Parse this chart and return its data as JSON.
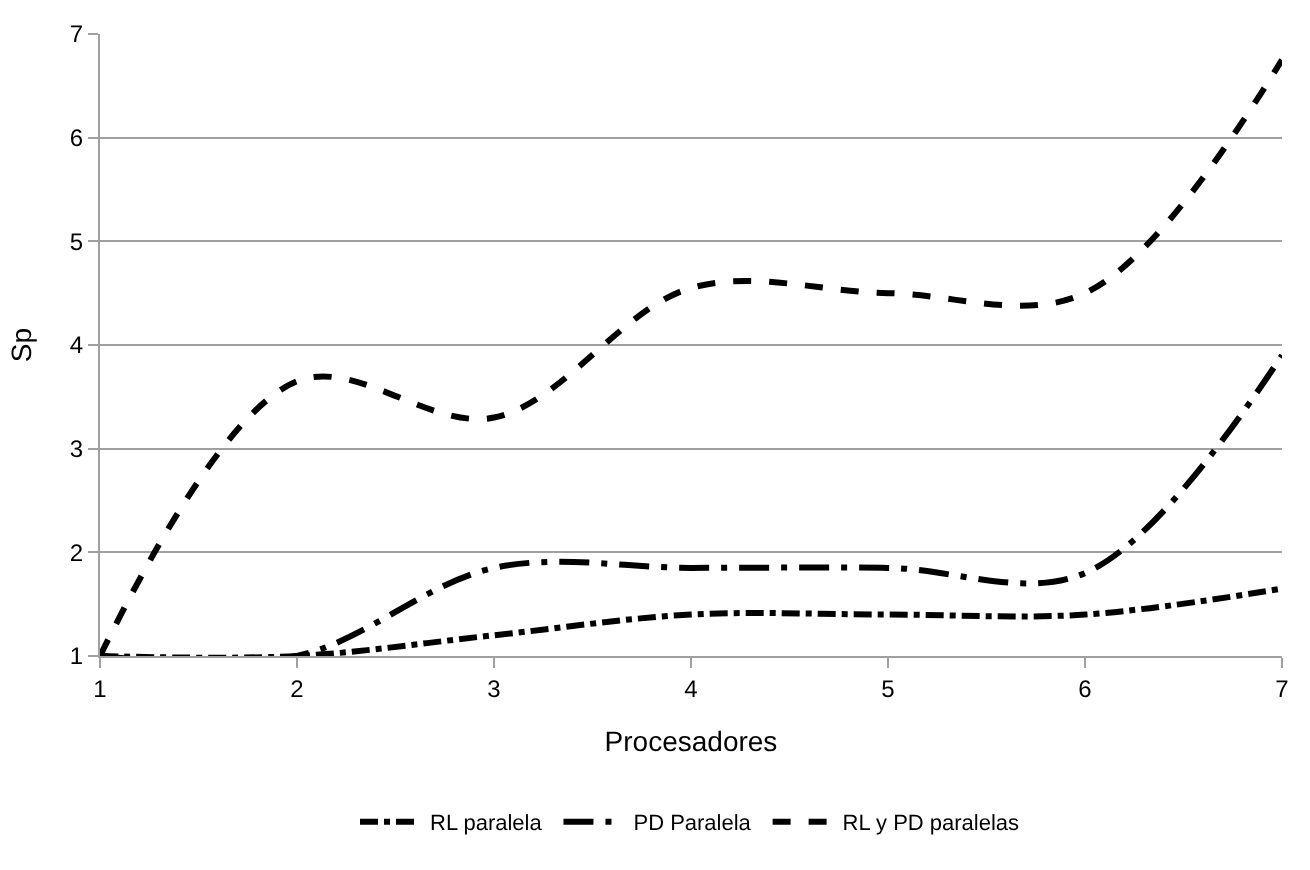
{
  "chart_data": {
    "type": "line",
    "xlabel": "Procesadores",
    "ylabel": "Sp",
    "x": [
      1,
      2,
      3,
      4,
      5,
      6,
      7
    ],
    "series": [
      {
        "name": "RL paralela",
        "color": "#000000",
        "line_style": "dashdot",
        "values": [
          1,
          1,
          1.2,
          1.4,
          1.4,
          1.4,
          1.65
        ]
      },
      {
        "name": "PD Paralela",
        "color": "#000000",
        "line_style": "longdashdot",
        "values": [
          1,
          1,
          1.85,
          1.85,
          1.85,
          1.8,
          3.9
        ]
      },
      {
        "name": "RL y PD paralelas",
        "color": "#000000",
        "line_style": "dashed",
        "values": [
          1,
          3.65,
          3.3,
          4.55,
          4.5,
          4.5,
          6.75
        ]
      }
    ],
    "xlim": [
      1,
      7
    ],
    "xticks": [
      1,
      2,
      3,
      4,
      5,
      6,
      7
    ],
    "ylim": [
      1,
      7
    ],
    "yticks": [
      1,
      2,
      3,
      4,
      5,
      6,
      7
    ],
    "grid": "y",
    "legend": "bottom",
    "marker": "none"
  }
}
